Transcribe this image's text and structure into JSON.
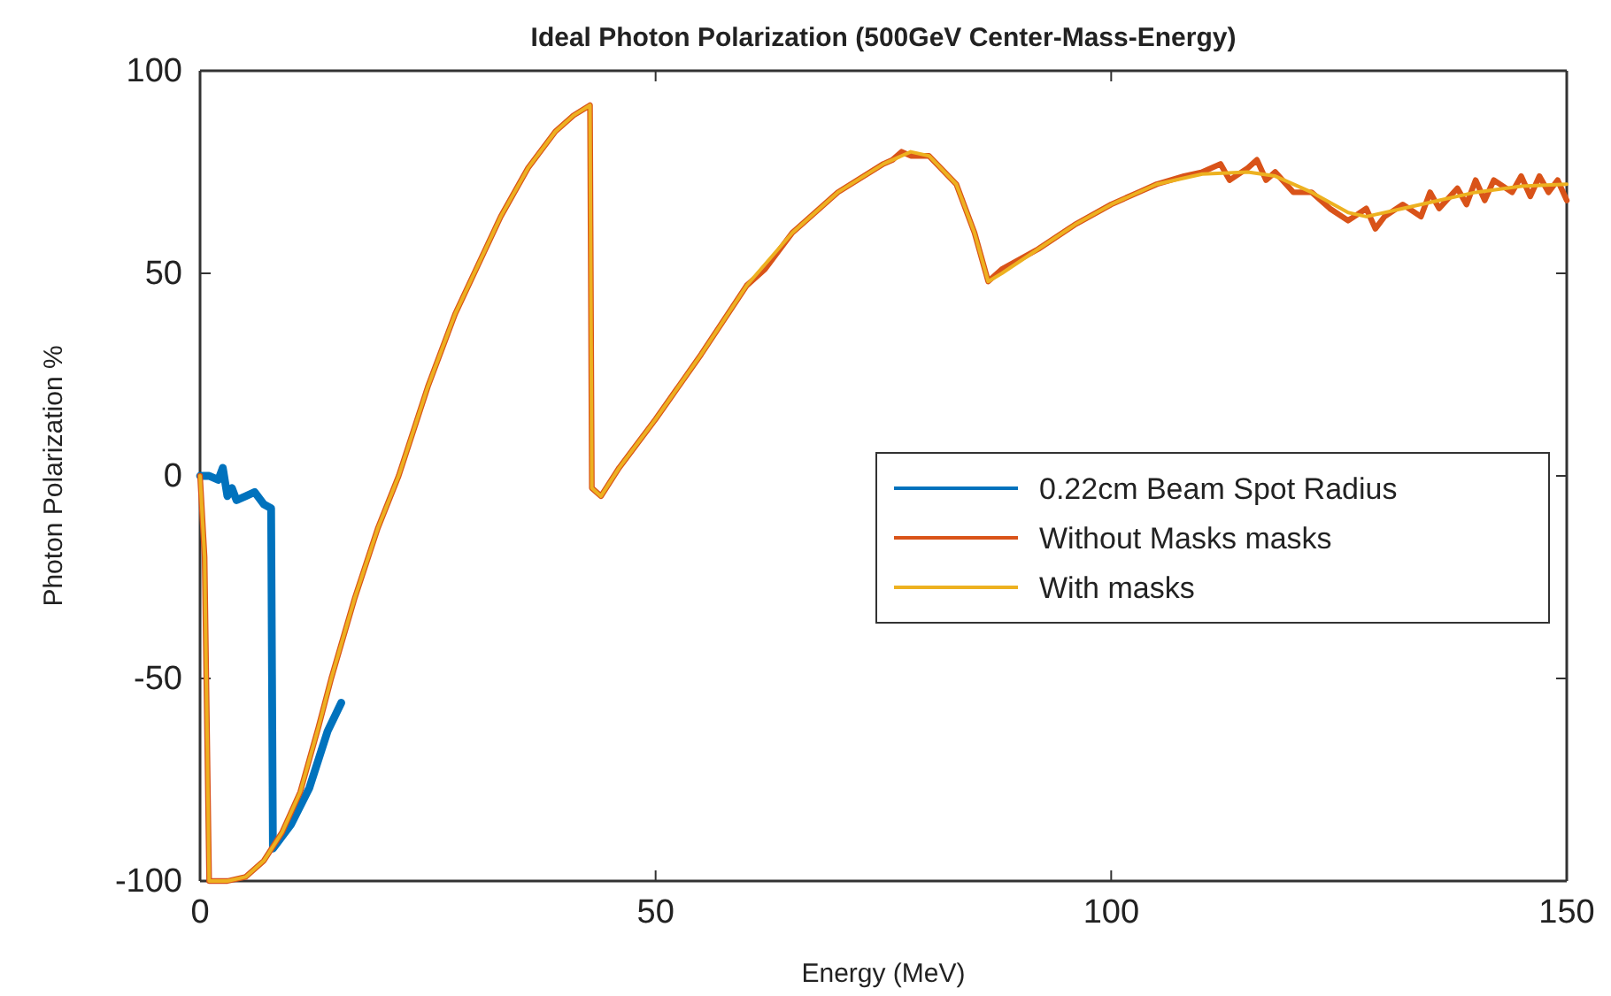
{
  "chart_data": {
    "type": "line",
    "title": "Ideal Photon Polarization (500GeV Center-Mass-Energy)",
    "xlabel": "Energy (MeV)",
    "ylabel": "Photon Polarization %",
    "xlim": [
      0,
      150
    ],
    "ylim": [
      -100,
      100
    ],
    "xticks": [
      0,
      50,
      100,
      150
    ],
    "yticks": [
      -100,
      -50,
      0,
      50,
      100
    ],
    "grid": false,
    "legend": "right",
    "line_style": "solid",
    "marker": "none",
    "series": [
      {
        "name": "0.22cm Beam Spot Radius",
        "color": "#0072bd",
        "x": [
          0,
          1,
          2,
          2.5,
          3,
          3.5,
          4,
          5,
          6,
          7,
          7.8,
          8,
          10,
          12,
          14,
          15.5
        ],
        "values": [
          0,
          0,
          -1,
          2,
          -5,
          -3,
          -6,
          -5,
          -4,
          -7,
          -8,
          -92,
          -86,
          -77,
          -63,
          -56
        ]
      },
      {
        "name": "Without Masks masks",
        "color": "#d95319",
        "x": [
          0,
          0.5,
          1,
          3,
          5,
          7,
          9,
          11,
          13,
          14.4,
          17,
          19.5,
          21.8,
          25,
          28,
          30.5,
          33,
          36,
          39,
          41,
          42.8,
          43,
          44,
          46,
          50,
          55,
          60,
          62,
          65,
          70,
          75,
          76,
          77,
          78,
          80,
          83,
          85,
          86.5,
          88,
          92,
          96,
          100,
          103,
          105,
          108,
          110,
          112,
          113,
          115,
          116,
          117,
          118,
          120,
          122,
          124,
          126,
          128,
          129,
          130,
          132,
          134,
          135,
          136,
          138,
          139,
          140,
          141,
          142,
          144,
          145,
          146,
          147,
          148,
          149,
          150
        ],
        "values": [
          0,
          -20,
          -100,
          -100,
          -99,
          -95,
          -88,
          -78,
          -62,
          -50,
          -30,
          -13,
          0,
          22,
          40,
          52,
          64,
          76,
          85,
          89,
          91.5,
          -3,
          -5,
          2,
          14,
          30,
          47,
          51,
          60,
          70,
          77,
          78,
          80,
          79,
          79,
          72,
          60,
          48,
          51,
          56,
          62,
          67,
          70,
          72,
          74,
          75,
          77,
          73,
          76,
          78,
          73,
          75,
          70,
          70,
          66,
          63,
          66,
          61,
          64,
          67,
          64,
          70,
          66,
          71,
          67,
          73,
          68,
          73,
          70,
          74,
          69,
          74,
          70,
          73,
          68
        ]
      },
      {
        "name": "With masks",
        "color": "#edb120",
        "x": [
          0,
          0.5,
          1,
          3,
          5,
          7,
          9,
          11,
          13,
          14.4,
          17,
          19.5,
          21.8,
          25,
          28,
          30.5,
          33,
          36,
          39,
          41,
          42.8,
          43,
          44,
          46,
          50,
          55,
          60,
          65,
          70,
          75,
          78,
          80,
          83,
          85,
          86.5,
          88,
          92,
          96,
          100,
          105,
          110,
          115,
          118,
          122,
          126,
          128,
          132,
          136,
          140,
          145,
          150
        ],
        "values": [
          0,
          -20,
          -100,
          -100,
          -99,
          -95,
          -88,
          -78,
          -62,
          -50,
          -30,
          -13,
          0,
          22,
          40,
          52,
          64,
          76,
          85,
          89,
          91.5,
          -3,
          -5,
          2,
          14,
          30,
          47,
          60,
          70,
          77,
          80,
          79,
          72,
          60,
          48,
          50,
          56,
          62,
          67,
          72,
          74.5,
          75,
          74,
          70,
          65,
          64,
          66,
          68,
          70,
          71.5,
          72
        ]
      }
    ]
  }
}
